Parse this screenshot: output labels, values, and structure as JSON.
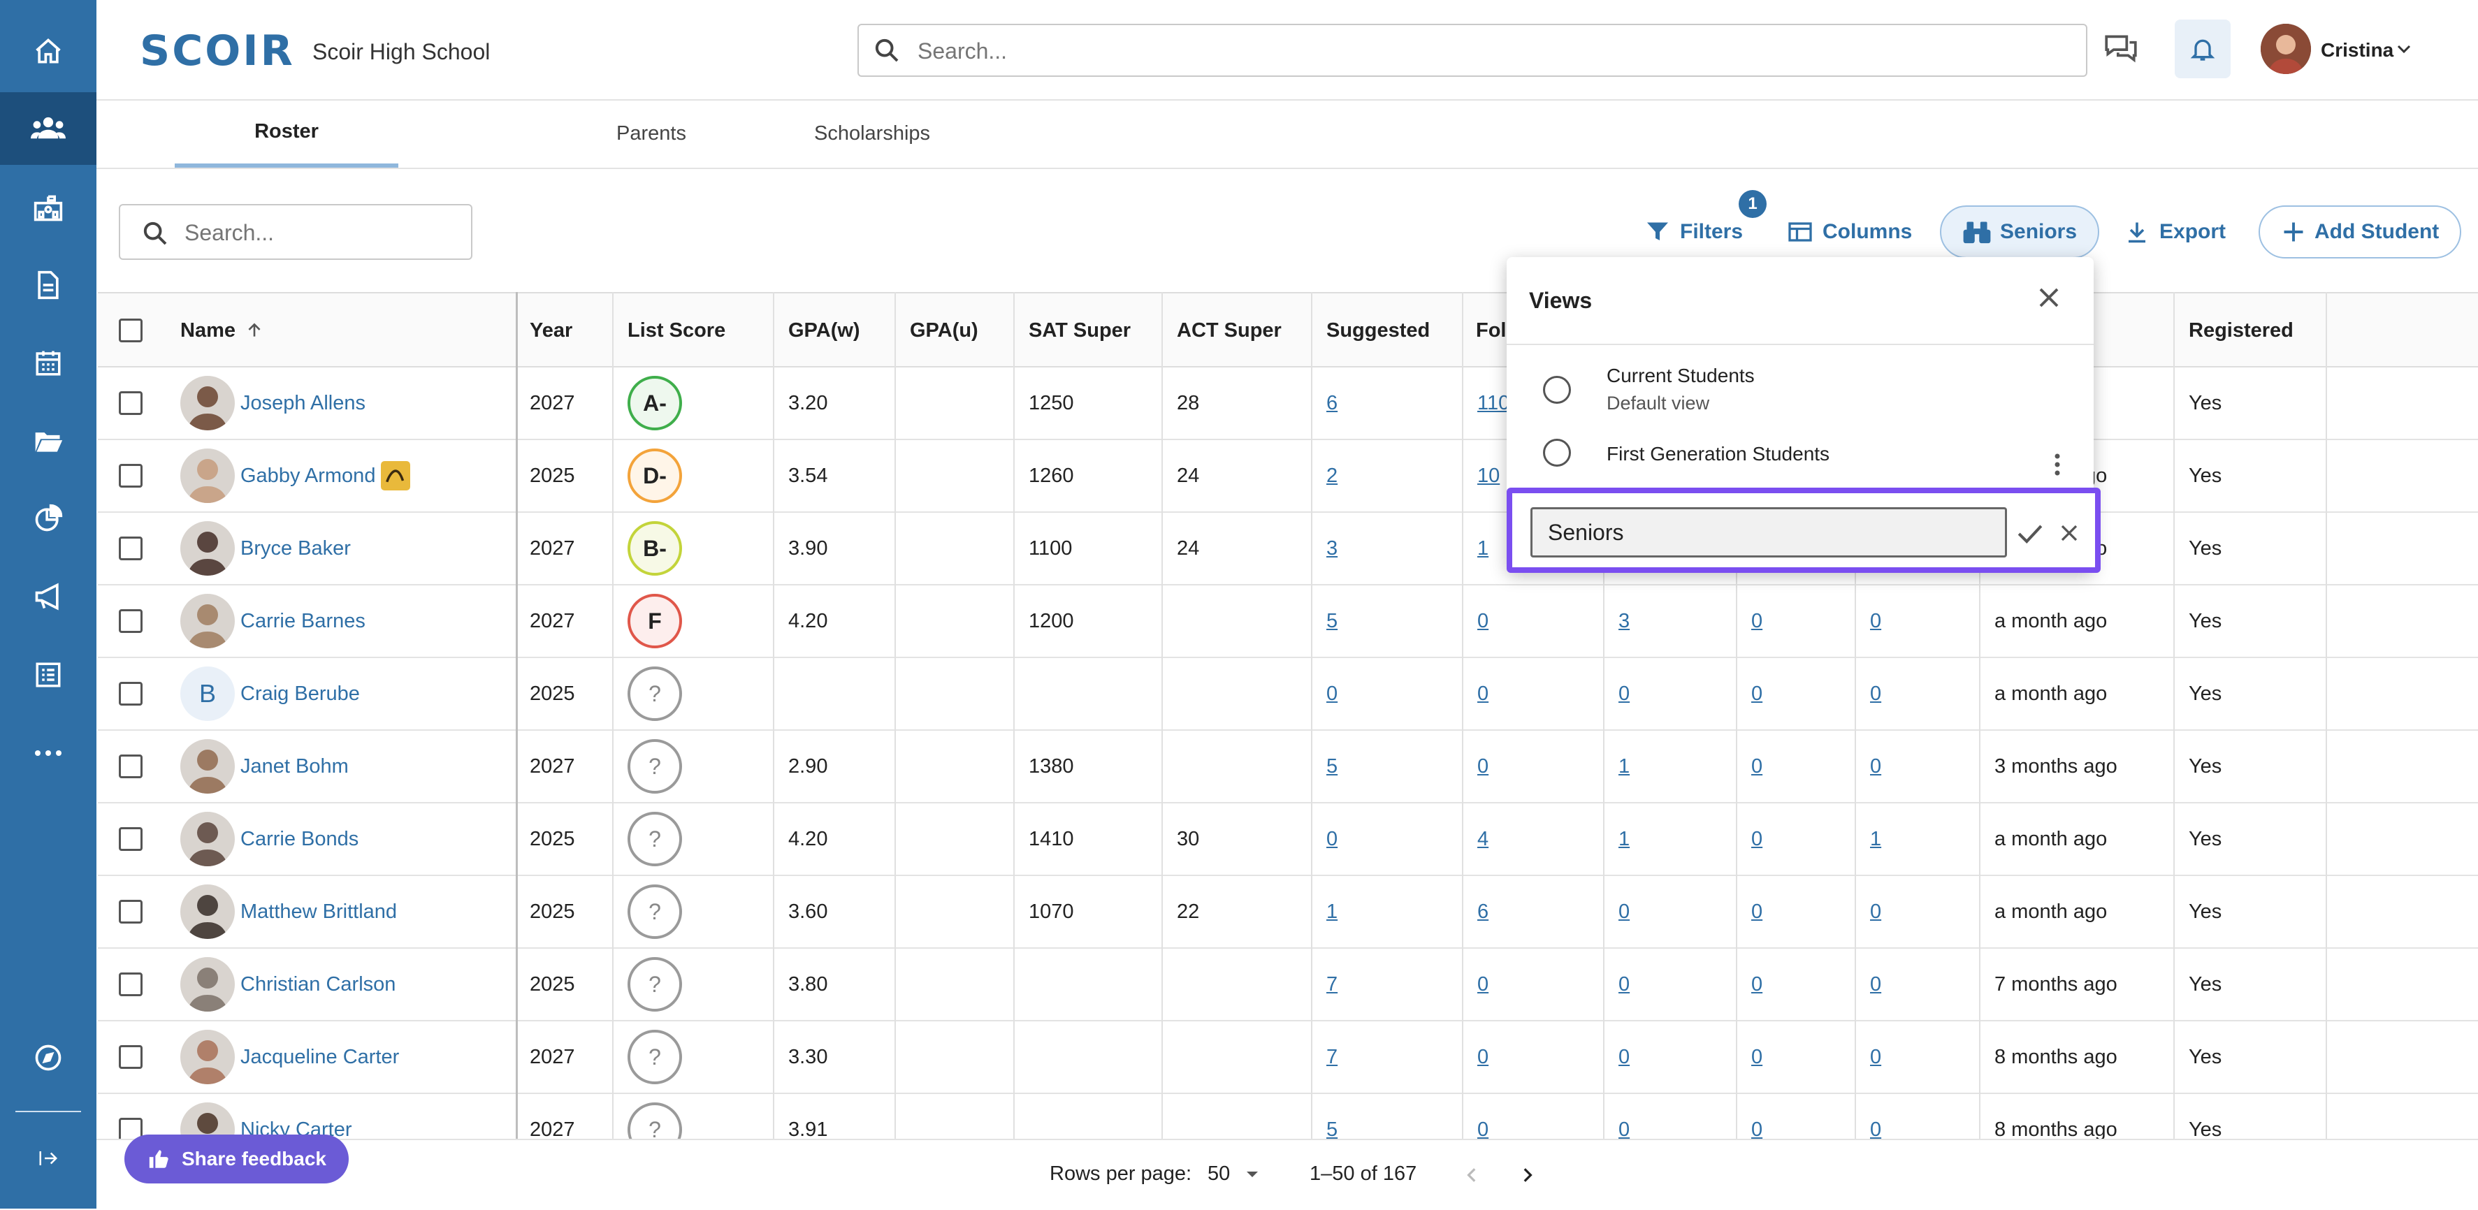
{
  "app": {
    "logo": "SCOIR",
    "school": "Scoir High School"
  },
  "global_search": {
    "placeholder": "Search..."
  },
  "user": {
    "name": "Cristina"
  },
  "tabs": [
    {
      "label": "Roster"
    },
    {
      "label": "Parents"
    },
    {
      "label": "Scholarships"
    }
  ],
  "list_search": {
    "placeholder": "Search..."
  },
  "toolbar": {
    "filters": "Filters",
    "filters_count": "1",
    "columns": "Columns",
    "view": "Seniors",
    "export": "Export",
    "add": "Add Student"
  },
  "table": {
    "headers": {
      "name": "Name",
      "year": "Year",
      "list_score": "List Score",
      "gpa_w": "GPA(w)",
      "gpa_u": "GPA(u)",
      "sat": "SAT Super",
      "act": "ACT Super",
      "suggested": "Suggested",
      "following": "Foll",
      "registered": "Registered"
    },
    "rows": [
      {
        "name": "Joseph Allens",
        "year": "2027",
        "score": "A-",
        "gpa_w": "3.20",
        "gpa_u": "",
        "sat": "1250",
        "act": "28",
        "suggested": "6",
        "following": "110",
        "c1": "",
        "c2": "",
        "c3": "",
        "last": "",
        "registered": "Yes"
      },
      {
        "name": "Gabby Armond",
        "year": "2025",
        "score": "D-",
        "gpa_w": "3.54",
        "gpa_u": "",
        "sat": "1260",
        "act": "24",
        "suggested": "2",
        "following": "10",
        "c1": "",
        "c2": "",
        "c3": "",
        "last": "a month ago",
        "registered": "Yes"
      },
      {
        "name": "Bryce Baker",
        "year": "2027",
        "score": "B-",
        "gpa_w": "3.90",
        "gpa_u": "",
        "sat": "1100",
        "act": "24",
        "suggested": "3",
        "following": "1",
        "c1": "",
        "c2": "",
        "c3": "",
        "last": "a month ago",
        "registered": "Yes"
      },
      {
        "name": "Carrie Barnes",
        "year": "2027",
        "score": "F",
        "gpa_w": "4.20",
        "gpa_u": "",
        "sat": "1200",
        "act": "",
        "suggested": "5",
        "following": "0",
        "c1": "3",
        "c2": "0",
        "c3": "0",
        "last": "a month ago",
        "registered": "Yes"
      },
      {
        "name": "Craig Berube",
        "year": "2025",
        "score": "?",
        "gpa_w": "",
        "gpa_u": "",
        "sat": "",
        "act": "",
        "suggested": "0",
        "following": "0",
        "c1": "0",
        "c2": "0",
        "c3": "0",
        "last": "a month ago",
        "registered": "Yes"
      },
      {
        "name": "Janet Bohm",
        "year": "2027",
        "score": "?",
        "gpa_w": "2.90",
        "gpa_u": "",
        "sat": "1380",
        "act": "",
        "suggested": "5",
        "following": "0",
        "c1": "1",
        "c2": "0",
        "c3": "0",
        "last": "3 months ago",
        "registered": "Yes"
      },
      {
        "name": "Carrie Bonds",
        "year": "2025",
        "score": "?",
        "gpa_w": "4.20",
        "gpa_u": "",
        "sat": "1410",
        "act": "30",
        "suggested": "0",
        "following": "4",
        "c1": "1",
        "c2": "0",
        "c3": "1",
        "last": "a month ago",
        "registered": "Yes"
      },
      {
        "name": "Matthew Brittland",
        "year": "2025",
        "score": "?",
        "gpa_w": "3.60",
        "gpa_u": "",
        "sat": "1070",
        "act": "22",
        "suggested": "1",
        "following": "6",
        "c1": "0",
        "c2": "0",
        "c3": "0",
        "last": "a month ago",
        "registered": "Yes"
      },
      {
        "name": "Christian Carlson",
        "year": "2025",
        "score": "?",
        "gpa_w": "3.80",
        "gpa_u": "",
        "sat": "",
        "act": "",
        "suggested": "7",
        "following": "0",
        "c1": "0",
        "c2": "0",
        "c3": "0",
        "last": "7 months ago",
        "registered": "Yes"
      },
      {
        "name": "Jacqueline Carter",
        "year": "2027",
        "score": "?",
        "gpa_w": "3.30",
        "gpa_u": "",
        "sat": "",
        "act": "",
        "suggested": "7",
        "following": "0",
        "c1": "0",
        "c2": "0",
        "c3": "0",
        "last": "8 months ago",
        "registered": "Yes"
      },
      {
        "name": "Nicky Carter",
        "year": "2027",
        "score": "?",
        "gpa_w": "3.91",
        "gpa_u": "",
        "sat": "",
        "act": "",
        "suggested": "5",
        "following": "0",
        "c1": "0",
        "c2": "0",
        "c3": "0",
        "last": "8 months ago",
        "registered": "Yes"
      }
    ]
  },
  "views_panel": {
    "title": "Views",
    "options": [
      {
        "title": "Current Students",
        "subtitle": "Default view"
      },
      {
        "title": "First Generation Students",
        "subtitle": ""
      }
    ],
    "edit_value": "Seniors"
  },
  "footer": {
    "feedback": "Share feedback",
    "rows_label": "Rows per page:",
    "rows_value": "50",
    "range": "1–50 of 167"
  },
  "colors": {
    "nav": "#2f6fa6",
    "nav_active": "#1d4f7c",
    "accent": "#2f6fa6",
    "feedback": "#6b5bd6",
    "edit_highlight": "#7a4ef0"
  }
}
